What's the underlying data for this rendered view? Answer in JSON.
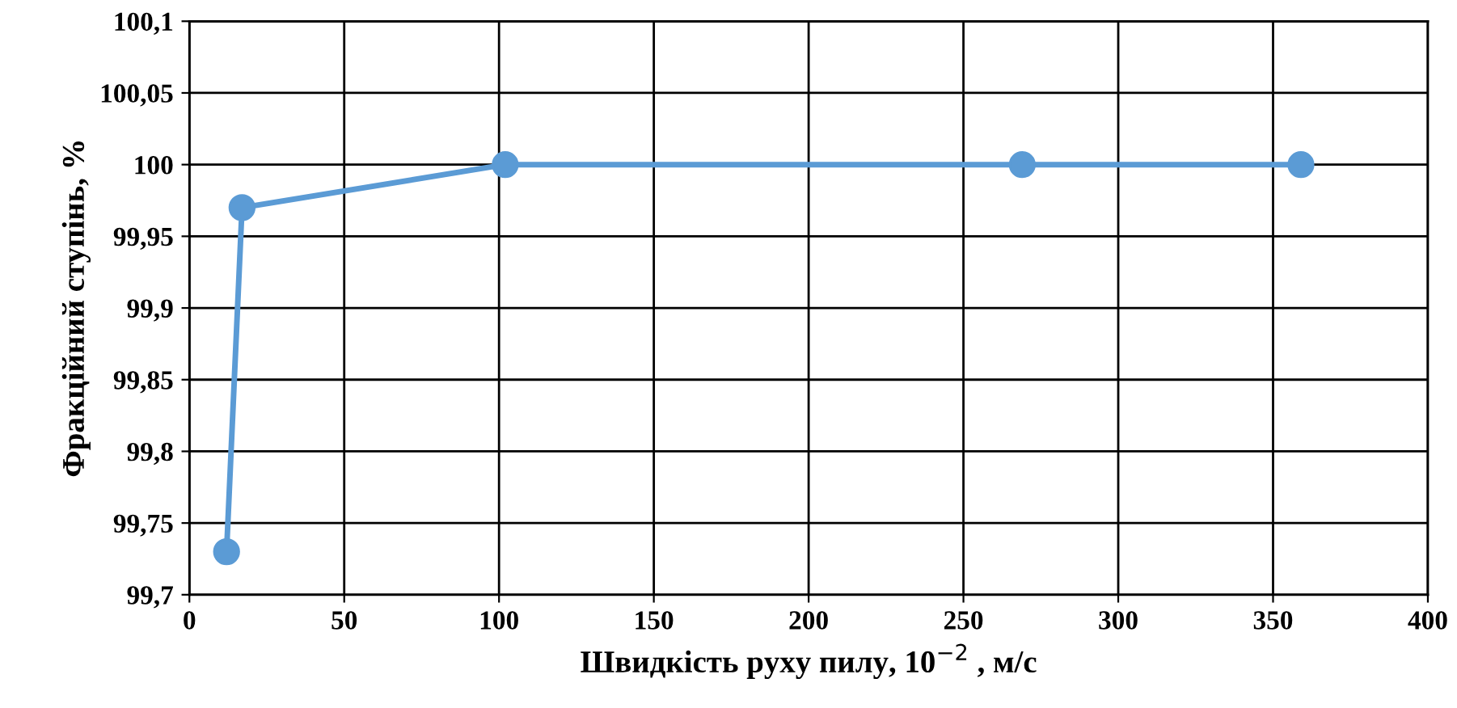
{
  "chart_data": {
    "type": "line",
    "xlabel": "Швидкість руху пилу, 10$^{−2}$ , м/с",
    "ylabel": "Фракційний ступінь, %",
    "x": [
      12,
      17,
      102,
      269,
      359
    ],
    "series": [
      {
        "color": "#5b9bd5",
        "values": [
          99.73,
          99.97,
          100,
          100,
          100
        ]
      }
    ],
    "xlim": [
      0,
      400
    ],
    "xticks": [
      0,
      50,
      100,
      150,
      200,
      250,
      300,
      350,
      400
    ],
    "ylim": [
      99.7,
      100.1
    ],
    "yticks": [
      {
        "value": 99.7,
        "label": "99,7"
      },
      {
        "value": 99.75,
        "label": "99,75"
      },
      {
        "value": 99.8,
        "label": "99,8"
      },
      {
        "value": 99.85,
        "label": "99,85"
      },
      {
        "value": 99.9,
        "label": "99,9"
      },
      {
        "value": 99.95,
        "label": "99,95"
      },
      {
        "value": 100,
        "label": "100"
      },
      {
        "value": 100.05,
        "label": "100,05"
      },
      {
        "value": 100.1,
        "label": "100,1"
      }
    ],
    "grid": true,
    "marker": "circle",
    "line_style": "solid"
  }
}
